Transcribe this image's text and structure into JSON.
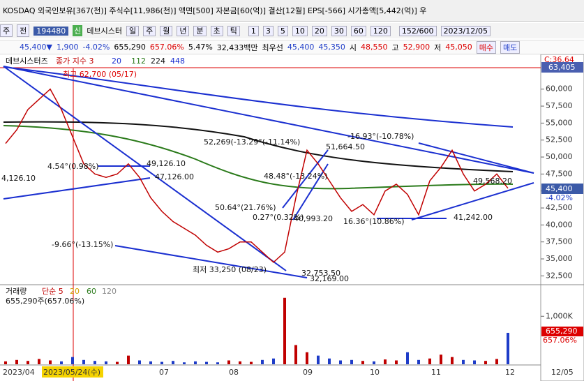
{
  "header": {
    "title": "KOSDAQ 외국인보유[367(천)] 주식수[11,986(천)] 액면[500] 자본금[60(억)] 결산[12월] EPS[-566] 시가총액[5,442(억)] 우"
  },
  "toolbar": {
    "kind": "주",
    "period": "전",
    "code": "194480",
    "badge": "신",
    "name": "데브시스터",
    "units": [
      "일",
      "주",
      "월",
      "년",
      "분",
      "초",
      "틱"
    ],
    "minutes": [
      "1",
      "3",
      "5",
      "10",
      "20",
      "30",
      "60",
      "120"
    ],
    "count": "152/600",
    "date": "2023/12/05"
  },
  "quote": {
    "price": "45,400▼",
    "change": "1,900",
    "rate": "-4.02%",
    "volume": "655,290",
    "volume_rate": "657.06%",
    "turnover": "5.47%",
    "amount": "32,433백만",
    "best_label": "최우선",
    "ask": "45,400",
    "bid": "45,350",
    "open_label": "시",
    "open": "48,550",
    "high_label": "고",
    "high": "52,900",
    "low_label": "저",
    "low": "45,050",
    "buy": "매수",
    "sell": "매도"
  },
  "chart_data": {
    "type": "line",
    "legend": {
      "name": "데브시스터즈",
      "close": "종가 지수 3",
      "ma": [
        "20",
        "112",
        "224",
        "448"
      ]
    },
    "series": [
      {
        "name": "종가",
        "color": "#c00000",
        "values": [
          52000,
          54000,
          57000,
          58500,
          60000,
          57000,
          53000,
          49000,
          47500,
          47000,
          47500,
          49000,
          47000,
          44000,
          42000,
          40500,
          39500,
          38500,
          37000,
          36000,
          36500,
          37500,
          37500,
          36000,
          34500,
          36000,
          44000,
          51000,
          49000,
          46500,
          44000,
          42000,
          43000,
          41500,
          45000,
          46000,
          44500,
          41500,
          46500,
          48500,
          51000,
          47500,
          45000,
          46000,
          47500,
          45400
        ]
      }
    ],
    "ylim": [
      31200,
      64700
    ],
    "yticks": [
      {
        "value": 32500,
        "label": "32,500"
      },
      {
        "value": 35000,
        "label": "35,000"
      },
      {
        "value": 37500,
        "label": "37,500"
      },
      {
        "value": 40000,
        "label": "40,000"
      },
      {
        "value": 42500,
        "label": "42,500"
      },
      {
        "value": 45000,
        "label": "45,000"
      },
      {
        "value": 47500,
        "label": "47,500"
      },
      {
        "value": 50000,
        "label": "50,000"
      },
      {
        "value": 52500,
        "label": "52,500"
      },
      {
        "value": 55000,
        "label": "55,000"
      },
      {
        "value": 57500,
        "label": "57,500"
      },
      {
        "value": 60000,
        "label": "60,000"
      }
    ],
    "axis_boxes": {
      "top_note": "C:36.64",
      "high": "63,405",
      "last": "45,400",
      "last_rate": "-4.02%"
    },
    "annotations": [
      "최고 62,700 (05/17)",
      "52,269(-13.29°(-11.14%)",
      "-16.93°(-10.78%)",
      "51,664.50",
      "4.54°(0.98%)",
      "49,126.10",
      "47,126.00",
      "48.48°(-13.24%)",
      "50.64°(21.76%)",
      "0.27°(0.32%)",
      "40,993.20",
      "16.36°(10.86%)",
      "41,242.00",
      "49,568.20",
      "-9.66°(-13.15%)",
      "최저 33,250 (08/23)",
      "32,753.50",
      "32,169.00",
      "4,126.10"
    ],
    "volume": {
      "legend": [
        "거래량",
        "단순 5",
        "20",
        "60",
        "120"
      ],
      "summary": "655,290주(657.06%)",
      "color": "#c00000",
      "values": [
        60000,
        90000,
        70000,
        110000,
        80000,
        60000,
        150000,
        90000,
        70000,
        60000,
        50000,
        180000,
        80000,
        60000,
        50000,
        70000,
        40000,
        60000,
        50000,
        40000,
        80000,
        60000,
        50000,
        90000,
        120000,
        1385000,
        400000,
        250000,
        180000,
        120000,
        80000,
        90000,
        70000,
        60000,
        100000,
        80000,
        250000,
        90000,
        120000,
        200000,
        150000,
        90000,
        80000,
        70000,
        110000,
        655290
      ],
      "ylim": [
        0,
        1600000
      ],
      "yticks": [
        {
          "value": 1000000,
          "label": "1,000K"
        }
      ],
      "last": "655,290",
      "last_rate": "657.06%"
    },
    "x_labels": [
      "2023/04",
      "2023/05/24(수)",
      "07",
      "08",
      "09",
      "10",
      "11",
      "12",
      "12/05"
    ]
  }
}
